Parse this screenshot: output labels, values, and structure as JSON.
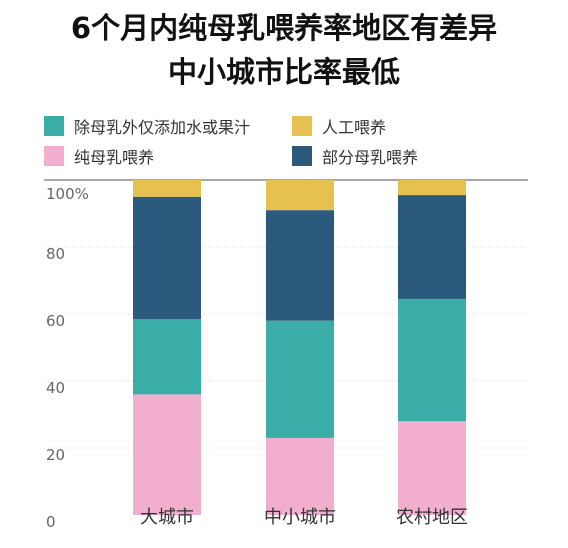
{
  "title_lines": [
    "6个月内纯母乳喂养率地区有差异",
    "中小城市比率最低"
  ],
  "legend": [
    {
      "label": "除母乳外仅添加水或果汁",
      "color": "#3aada6"
    },
    {
      "label": "人工喂养",
      "color": "#e6c14f"
    },
    {
      "label": "纯母乳喂养",
      "color": "#f2aecf"
    },
    {
      "label": "部分母乳喂养",
      "color": "#2c5a7c"
    }
  ],
  "chart_data": {
    "type": "bar",
    "stacked": true,
    "title": "6个月内纯母乳喂养率地区有差异 中小城市比率最低",
    "categories": [
      "大城市",
      "中小城市",
      "农村地区"
    ],
    "series": [
      {
        "name": "纯母乳喂养",
        "color": "#f2aecf",
        "values": [
          36,
          23,
          28
        ]
      },
      {
        "name": "除母乳外仅添加水或果汁",
        "color": "#3aada6",
        "values": [
          22.5,
          35,
          36.5
        ]
      },
      {
        "name": "部分母乳喂养",
        "color": "#2c5a7c",
        "values": [
          36.5,
          33,
          31
        ]
      },
      {
        "name": "人工喂养",
        "color": "#e6c14f",
        "values": [
          5,
          9,
          4.5
        ]
      }
    ],
    "yticks": [
      0,
      20,
      40,
      60,
      80,
      100
    ],
    "ytick_labels": [
      "0",
      "20",
      "40",
      "60",
      "80",
      "100%"
    ],
    "ylim": [
      0,
      100
    ],
    "grid": true,
    "legend_position": "top"
  }
}
